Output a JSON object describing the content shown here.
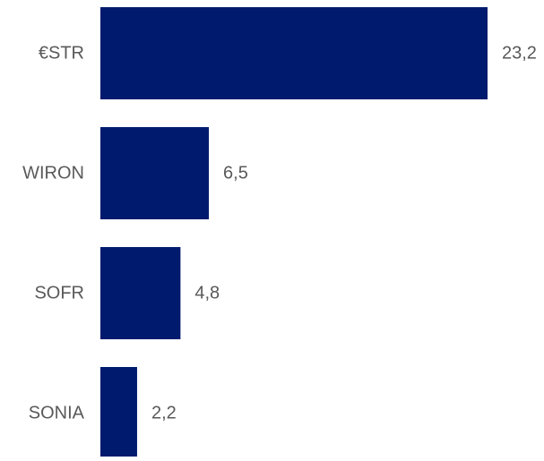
{
  "chart_data": {
    "type": "bar",
    "orientation": "horizontal",
    "categories": [
      "€STR",
      "WIRON",
      "SOFR",
      "SONIA"
    ],
    "values": [
      23.2,
      6.5,
      4.8,
      2.2
    ],
    "value_labels": [
      "23,2",
      "6,5",
      "4,8",
      "2,2"
    ],
    "bar_color": "#001a6e",
    "label_color": "#595959",
    "grid": false,
    "legend": "none",
    "xlim": [
      0,
      23.2
    ]
  }
}
